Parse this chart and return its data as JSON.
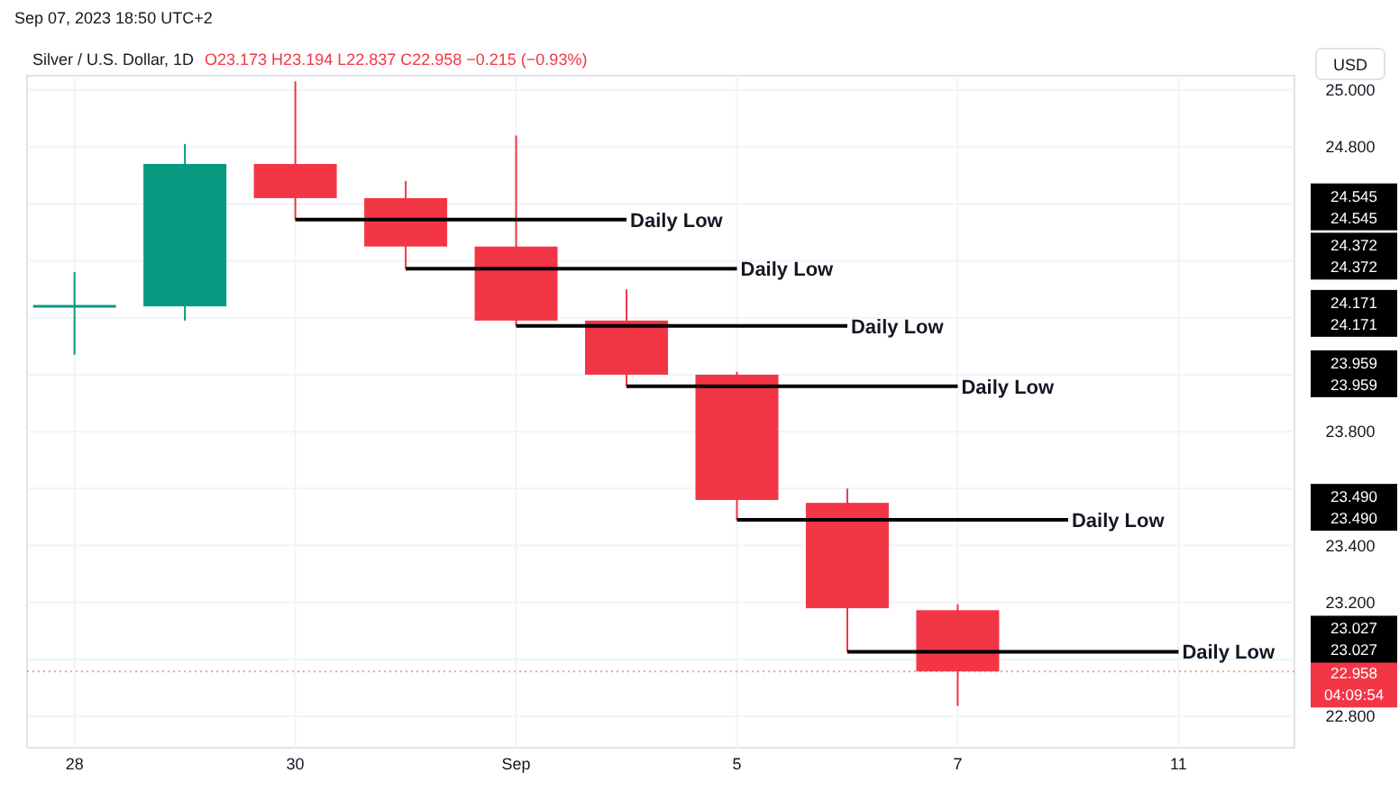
{
  "chart_data": {
    "type": "candlestick",
    "title": "Silver / U.S. Dollar, 1D",
    "subtitle": "O23.173 H23.194 L22.837 C22.958 −0.215 (−0.93%)",
    "ylabel": "USD",
    "annotations": [
      "Sep 07, 2023 18:50 UTC+2",
      "22.958",
      "04:09:54",
      "24.545",
      "24.545",
      "24.372",
      "24.372",
      "24.171",
      "24.171",
      "23.959",
      "23.959",
      "23.490",
      "23.490",
      "23.027",
      "23.027"
    ],
    "categories": [
      "28",
      null,
      "30",
      null,
      "Sep",
      null,
      "5",
      null,
      "7",
      null,
      "11"
    ],
    "ohlc": [
      [
        24.24,
        24.36,
        24.07,
        24.24
      ],
      [
        24.24,
        24.81,
        24.19,
        24.74
      ],
      [
        24.74,
        25.03,
        24.545,
        24.62
      ],
      [
        24.62,
        24.68,
        24.372,
        24.45
      ],
      [
        24.45,
        24.84,
        24.171,
        24.19
      ],
      [
        24.19,
        24.3,
        23.959,
        24.0
      ],
      [
        24.0,
        24.01,
        23.49,
        23.56
      ],
      [
        23.55,
        23.6,
        23.027,
        23.18
      ],
      [
        23.173,
        23.194,
        22.837,
        22.958
      ],
      null,
      null
    ],
    "colors": [
      "#089981",
      "#089981",
      "#f23645",
      "#f23645",
      "#f23645",
      "#f23645",
      "#f23645",
      "#f23645",
      "#f23645",
      null,
      null
    ],
    "ylim": [
      22.69,
      25.05
    ],
    "yticks": [
      {
        "value": 22.8,
        "label": "22.800"
      },
      {
        "value": 23.0,
        "label": null
      },
      {
        "value": 23.2,
        "label": "23.200"
      },
      {
        "value": 23.4,
        "label": "23.400"
      },
      {
        "value": 23.6,
        "label": null
      },
      {
        "value": 23.8,
        "label": "23.800"
      },
      {
        "value": 24.0,
        "label": null
      },
      {
        "value": 24.2,
        "label": null
      },
      {
        "value": 24.4,
        "label": null
      },
      {
        "value": 24.6,
        "label": null
      },
      {
        "value": 24.8,
        "label": "24.800"
      },
      {
        "value": 25.0,
        "label": "25.000"
      }
    ],
    "ref_lines": [
      {
        "axis": "y",
        "value": 22.958,
        "color": "#f23645",
        "line_style": "dotted"
      },
      {
        "axis": "y",
        "value": 24.545,
        "label": "Daily Low",
        "color": "#000000",
        "line_style": "solid"
      },
      {
        "axis": "y",
        "value": 24.372,
        "label": "Daily Low",
        "color": "#000000",
        "line_style": "solid"
      },
      {
        "axis": "y",
        "value": 24.171,
        "label": "Daily Low",
        "color": "#000000",
        "line_style": "solid"
      },
      {
        "axis": "y",
        "value": 23.959,
        "label": "Daily Low",
        "color": "#000000",
        "line_style": "solid"
      },
      {
        "axis": "y",
        "value": 23.49,
        "label": "Daily Low",
        "color": "#000000",
        "line_style": "solid"
      },
      {
        "axis": "y",
        "value": 23.027,
        "label": "Daily Low",
        "color": "#000000",
        "line_style": "solid"
      }
    ],
    "grid": true,
    "legend": false
  }
}
